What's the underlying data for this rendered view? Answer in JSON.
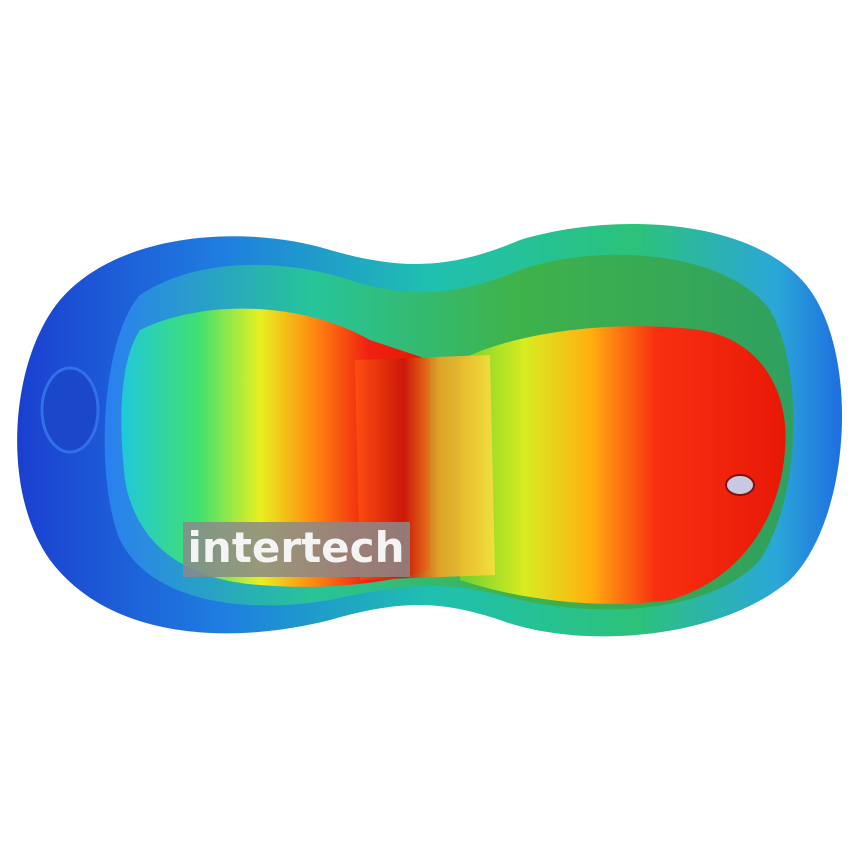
{
  "watermark": "intertech"
}
